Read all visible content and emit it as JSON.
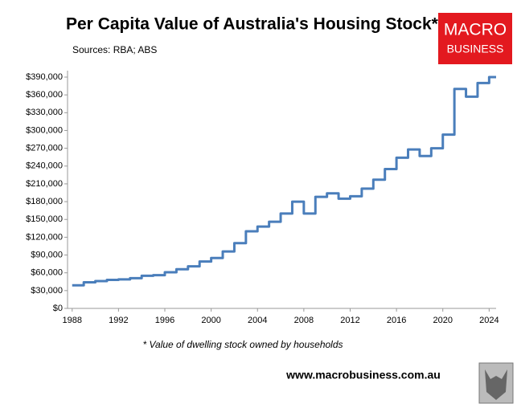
{
  "chart_data": {
    "type": "line",
    "step": "post",
    "title": "Per Capita Value of Australia's Housing Stock*",
    "subtitle": "Sources: RBA; ABS",
    "logo": [
      "MACRO",
      "BUSINESS"
    ],
    "footnote": "* Value of dwelling stock owned by households",
    "website": "www.macrobusiness.com.au",
    "x": [
      1988,
      1989,
      1990,
      1991,
      1992,
      1993,
      1994,
      1995,
      1996,
      1997,
      1998,
      1999,
      2000,
      2001,
      2002,
      2003,
      2004,
      2005,
      2006,
      2007,
      2008,
      2009,
      2010,
      2011,
      2012,
      2013,
      2014,
      2015,
      2016,
      2017,
      2018,
      2019,
      2020,
      2021,
      2022,
      2023,
      2024
    ],
    "series": [
      {
        "name": "Per capita value",
        "color": "#4a7ebb",
        "values": [
          39000,
          44000,
          46000,
          48000,
          49000,
          51000,
          55000,
          56000,
          61000,
          66000,
          71000,
          79000,
          85000,
          96000,
          110000,
          130000,
          138000,
          146000,
          160000,
          180000,
          160000,
          188000,
          194000,
          185000,
          189000,
          202000,
          217000,
          235000,
          254000,
          268000,
          257000,
          270000,
          293000,
          370000,
          357000,
          380000,
          390000
        ]
      }
    ],
    "xlim": [
      1987.6,
      2024.6
    ],
    "xticks": [
      1988,
      1992,
      1996,
      2000,
      2004,
      2008,
      2012,
      2016,
      2020,
      2024
    ],
    "ylim": [
      0,
      390000
    ],
    "yticks": [
      {
        "value": 0,
        "label": "$0"
      },
      {
        "value": 30000,
        "label": "$30,000"
      },
      {
        "value": 60000,
        "label": "$60,000"
      },
      {
        "value": 90000,
        "label": "$90,000"
      },
      {
        "value": 120000,
        "label": "$120,000"
      },
      {
        "value": 150000,
        "label": "$150,000"
      },
      {
        "value": 180000,
        "label": "$180,000"
      },
      {
        "value": 210000,
        "label": "$210,000"
      },
      {
        "value": 240000,
        "label": "$240,000"
      },
      {
        "value": 270000,
        "label": "$270,000"
      },
      {
        "value": 300000,
        "label": "$300,000"
      },
      {
        "value": 330000,
        "label": "$330,000"
      },
      {
        "value": 360000,
        "label": "$360,000"
      },
      {
        "value": 390000,
        "label": "$390,000"
      }
    ],
    "grid": false
  }
}
